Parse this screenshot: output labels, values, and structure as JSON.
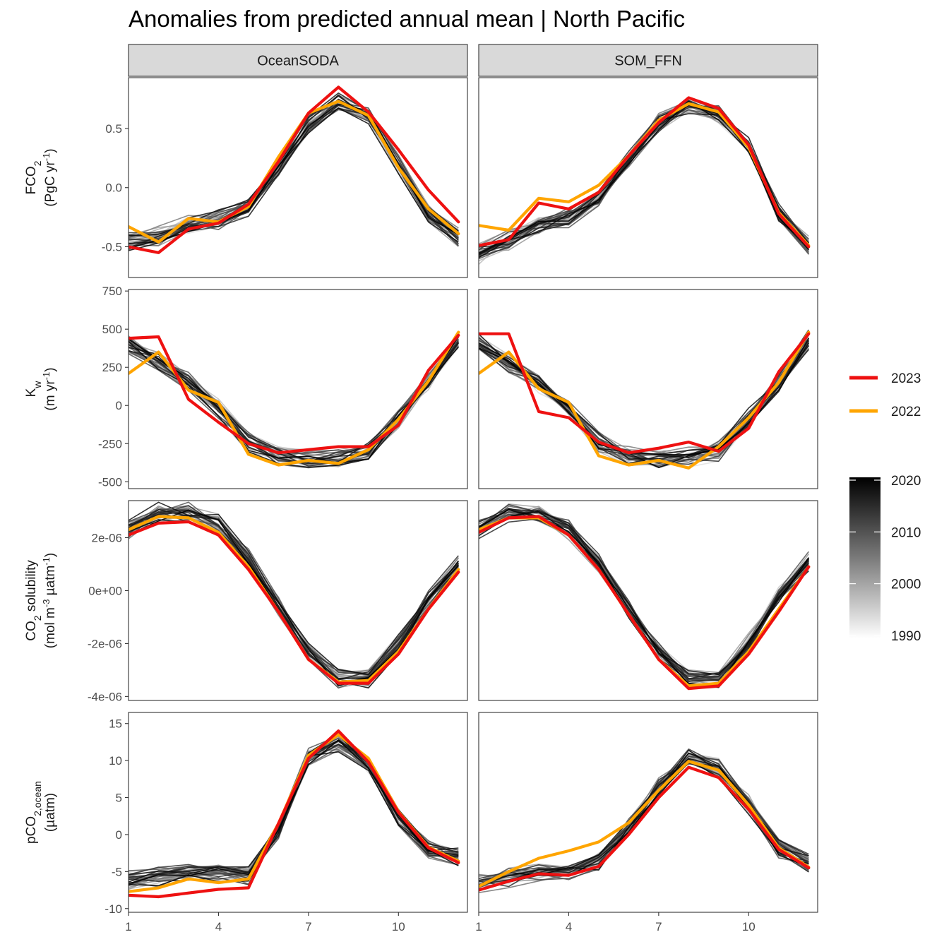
{
  "title": "Anomalies from predicted annual mean | North Pacific",
  "facets": [
    "OceanSODA",
    "SOM_FFN"
  ],
  "colors": {
    "y2023": "#ee1111",
    "y2022": "#ffa500",
    "grad_dark": "#000000",
    "grad_light": "#ffffff",
    "strip_bg": "#d9d9d9"
  },
  "legend": {
    "discrete": [
      {
        "label": "2023",
        "color": "#ee1111"
      },
      {
        "label": "2022",
        "color": "#ffa500"
      }
    ],
    "gradient_ticks": [
      "2020",
      "2010",
      "2000",
      "1990"
    ],
    "gradient_range": [
      1990,
      2020
    ]
  },
  "chart_data": [
    {
      "type": "line",
      "facet_row": "FCO2",
      "ylabel": "FCO2 (PgC yr-1)",
      "ylabel_html": "FCO<tspan baseline-shift='sub' font-size='14'>2</tspan>",
      "ylabel_line2_html": "(PgC yr<tspan baseline-shift='super' font-size='13'>-1</tspan>)",
      "ylim": [
        -0.76,
        0.93
      ],
      "yticks": [
        -0.5,
        0.0,
        0.5
      ],
      "ytick_labels": [
        "-0.5",
        "0.0",
        "0.5"
      ],
      "x": [
        1,
        2,
        3,
        4,
        5,
        6,
        7,
        8,
        9,
        10,
        11,
        12
      ],
      "xlim": [
        1,
        12.3
      ],
      "xticks": [
        1,
        4,
        7,
        10
      ],
      "panels": [
        {
          "facet": "OceanSODA",
          "base": [
            -0.45,
            -0.41,
            -0.31,
            -0.27,
            -0.16,
            0.16,
            0.54,
            0.72,
            0.62,
            0.19,
            -0.22,
            -0.41
          ],
          "series": [
            {
              "name": "2023",
              "values": [
                -0.5,
                -0.55,
                -0.35,
                -0.3,
                -0.14,
                0.22,
                0.63,
                0.85,
                0.64,
                0.32,
                -0.02,
                -0.29
              ]
            },
            {
              "name": "2022",
              "values": [
                -0.33,
                -0.46,
                -0.26,
                -0.29,
                -0.16,
                0.26,
                0.63,
                0.73,
                0.61,
                0.17,
                -0.18,
                -0.39
              ]
            }
          ]
        },
        {
          "facet": "SOM_FFN",
          "base": [
            -0.56,
            -0.44,
            -0.32,
            -0.25,
            -0.09,
            0.25,
            0.55,
            0.7,
            0.62,
            0.34,
            -0.2,
            -0.49
          ],
          "series": [
            {
              "name": "2023",
              "values": [
                -0.49,
                -0.44,
                -0.13,
                -0.18,
                -0.04,
                0.27,
                0.55,
                0.76,
                0.67,
                0.36,
                -0.22,
                -0.5
              ]
            },
            {
              "name": "2022",
              "values": [
                -0.32,
                -0.36,
                -0.09,
                -0.12,
                0.02,
                0.27,
                0.57,
                0.71,
                0.64,
                0.34,
                -0.21,
                -0.49
              ]
            }
          ]
        }
      ]
    },
    {
      "type": "line",
      "facet_row": "Kw",
      "ylabel": "Kw (m yr-1)",
      "ylabel_html": "K<tspan baseline-shift='sub' font-size='14'>w</tspan>",
      "ylabel_line2_html": "(m yr<tspan baseline-shift='super' font-size='13'>-1</tspan>)",
      "ylim": [
        -545,
        760
      ],
      "yticks": [
        -500,
        -250,
        0,
        250,
        500,
        750
      ],
      "ytick_labels": [
        "-500",
        "-250",
        "0",
        "250",
        "500",
        "750"
      ],
      "x": [
        1,
        2,
        3,
        4,
        5,
        6,
        7,
        8,
        9,
        10,
        11,
        12
      ],
      "xlim": [
        1,
        12.3
      ],
      "xticks": [
        1,
        4,
        7,
        10
      ],
      "panels": [
        {
          "facet": "OceanSODA",
          "base": [
            400,
            290,
            150,
            -20,
            -240,
            -330,
            -350,
            -340,
            -300,
            -80,
            150,
            430
          ],
          "series": [
            {
              "name": "2023",
              "values": [
                440,
                450,
                40,
                -110,
                -250,
                -310,
                -290,
                -270,
                -270,
                -130,
                230,
                460
              ]
            },
            {
              "name": "2022",
              "values": [
                210,
                350,
                100,
                20,
                -320,
                -390,
                -360,
                -380,
                -290,
                -90,
                160,
                480
              ]
            }
          ]
        },
        {
          "facet": "SOM_FFN",
          "base": [
            400,
            280,
            150,
            -20,
            -240,
            -330,
            -350,
            -340,
            -300,
            -80,
            150,
            430
          ],
          "series": [
            {
              "name": "2023",
              "values": [
                470,
                470,
                -40,
                -80,
                -240,
                -310,
                -280,
                -240,
                -300,
                -150,
                220,
                470
              ]
            },
            {
              "name": "2022",
              "values": [
                210,
                350,
                110,
                20,
                -330,
                -390,
                -360,
                -410,
                -270,
                -80,
                150,
                480
              ]
            }
          ]
        }
      ]
    },
    {
      "type": "line",
      "facet_row": "CO2 solubility",
      "ylabel": "CO2 solubility (mol m-3 µatm-1)",
      "ylabel_html": "CO<tspan baseline-shift='sub' font-size='14'>2</tspan> solubility",
      "ylabel_line2_html": "(mol m<tspan baseline-shift='super' font-size='13'>-3</tspan> µatm<tspan baseline-shift='super' font-size='13'>-1</tspan>)",
      "ylim": [
        -4.15e-06,
        3.4e-06
      ],
      "yticks": [
        -4e-06,
        -2e-06,
        0,
        2e-06
      ],
      "ytick_labels": [
        "-4e-06",
        "-2e-06",
        "0e+00",
        "2e-06"
      ],
      "x": [
        1,
        2,
        3,
        4,
        5,
        6,
        7,
        8,
        9,
        10,
        11,
        12
      ],
      "xlim": [
        1,
        12.3
      ],
      "xticks": [
        1,
        4,
        7,
        10
      ],
      "panels": [
        {
          "facet": "OceanSODA",
          "base": [
            2.35e-06,
            2.95e-06,
            2.95e-06,
            2.5e-06,
            1.2e-06,
            -6e-07,
            -2.3e-06,
            -3.3e-06,
            -3.3e-06,
            -2e-06,
            -4e-07,
            1e-06
          ],
          "series": [
            {
              "name": "2023",
              "values": [
                2.1e-06,
                2.55e-06,
                2.6e-06,
                2.1e-06,
                8e-07,
                -8e-07,
                -2.6e-06,
                -3.5e-06,
                -3.5e-06,
                -2.4e-06,
                -7e-07,
                7e-07
              ]
            },
            {
              "name": "2022",
              "values": [
                2.3e-06,
                2.8e-06,
                2.75e-06,
                2.2e-06,
                9e-07,
                -8e-07,
                -2.6e-06,
                -3.45e-06,
                -3.4e-06,
                -2.3e-06,
                -7e-07,
                8e-07
              ]
            }
          ]
        },
        {
          "facet": "SOM_FFN",
          "base": [
            2.35e-06,
            2.9e-06,
            2.9e-06,
            2.3e-06,
            1e-06,
            -7e-07,
            -2.3e-06,
            -3.35e-06,
            -3.3e-06,
            -2e-06,
            -2e-07,
            1.1e-06
          ],
          "series": [
            {
              "name": "2023",
              "values": [
                2.2e-06,
                2.75e-06,
                2.8e-06,
                2.1e-06,
                8e-07,
                -9e-07,
                -2.6e-06,
                -3.7e-06,
                -3.6e-06,
                -2.4e-06,
                -8e-07,
                9e-07
              ]
            },
            {
              "name": "2022",
              "values": [
                2.3e-06,
                2.75e-06,
                2.75e-06,
                2.1e-06,
                8e-07,
                -9e-07,
                -2.6e-06,
                -3.6e-06,
                -3.5e-06,
                -2.3e-06,
                -7e-07,
                9e-07
              ]
            }
          ]
        }
      ]
    },
    {
      "type": "line",
      "facet_row": "pCO2,ocean",
      "ylabel": "pCO2,ocean (µatm)",
      "ylabel_html": "pCO<tspan baseline-shift='sub' font-size='14'>2,ocean</tspan>",
      "ylabel_line2_html": "(µatm)",
      "ylim": [
        -10.5,
        16.5
      ],
      "yticks": [
        -10,
        -5,
        0,
        5,
        10,
        15
      ],
      "ytick_labels": [
        "-10",
        "-5",
        "0",
        "5",
        "10",
        "15"
      ],
      "x": [
        1,
        2,
        3,
        4,
        5,
        6,
        7,
        8,
        9,
        10,
        11,
        12
      ],
      "xlim": [
        1,
        12.3
      ],
      "xticks": [
        1,
        4,
        7,
        10
      ],
      "xtick_labels": [
        "1",
        "4",
        "7",
        "10"
      ],
      "panels": [
        {
          "facet": "OceanSODA",
          "base": [
            -6.0,
            -5.8,
            -5.2,
            -5.0,
            -5.5,
            0.5,
            10.5,
            12.5,
            9.5,
            2.5,
            -2.0,
            -3.0
          ],
          "series": [
            {
              "name": "2023",
              "values": [
                -8.2,
                -8.4,
                -7.9,
                -7.4,
                -7.2,
                1.5,
                10.3,
                14.0,
                9.8,
                3.0,
                -1.8,
                -3.8
              ]
            },
            {
              "name": "2022",
              "values": [
                -7.7,
                -7.2,
                -6.0,
                -6.5,
                -6.0,
                1.5,
                10.7,
                13.5,
                10.3,
                3.1,
                -1.7,
                -3.6
              ]
            }
          ]
        },
        {
          "facet": "SOM_FFN",
          "base": [
            -6.5,
            -5.8,
            -5.0,
            -4.8,
            -3.5,
            1.0,
            6.5,
            10.5,
            9.0,
            4.0,
            -1.8,
            -4.0
          ],
          "series": [
            {
              "name": "2023",
              "values": [
                -7.5,
                -6.3,
                -5.3,
                -5.5,
                -4.3,
                0.0,
                5.0,
                9.1,
                7.7,
                3.4,
                -2.0,
                -4.5
              ]
            },
            {
              "name": "2022",
              "values": [
                -7.0,
                -5.0,
                -3.2,
                -2.2,
                -1.0,
                1.6,
                6.0,
                9.9,
                8.7,
                4.0,
                -1.8,
                -4.4
              ]
            }
          ]
        }
      ]
    }
  ]
}
